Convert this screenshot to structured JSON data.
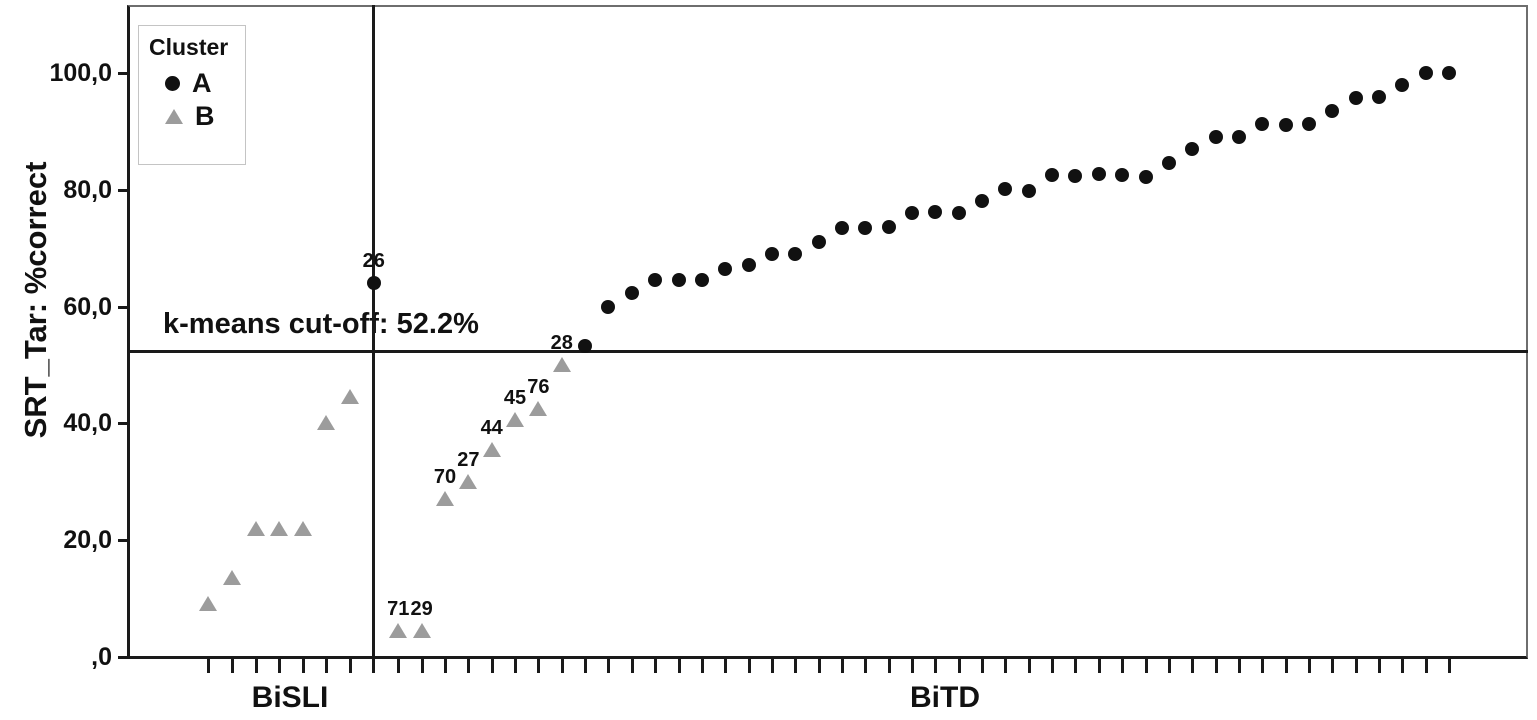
{
  "figure": {
    "y_axis": {
      "title": "SRT_Tar: %correct",
      "ticks": [
        {
          "label": "100,0",
          "value": 100
        },
        {
          "label": "80,0",
          "value": 80
        },
        {
          "label": "60,0",
          "value": 60
        },
        {
          "label": "40,0",
          "value": 40
        },
        {
          "label": "20,0",
          "value": 20
        },
        {
          "label": ",0",
          "value": 0
        }
      ]
    },
    "x_axis": {
      "groups": [
        {
          "label": "BiSLI"
        },
        {
          "label": "BiTD"
        }
      ]
    },
    "legend": {
      "title": "Cluster",
      "entries": [
        {
          "label": "A",
          "marker": "circle"
        },
        {
          "label": "B",
          "marker": "triangle"
        }
      ]
    },
    "cutoff": {
      "text": "k-means cut-off: 52.2%",
      "value": 52.2
    },
    "colors": {
      "cluster_a": "#111111",
      "cluster_b": "#9c9c9c"
    }
  },
  "chart_data": {
    "type": "scatter",
    "title": "",
    "xlabel": "",
    "ylabel": "SRT_Tar: %correct",
    "ylim": [
      0,
      111
    ],
    "grid": false,
    "legend_position": "top-left",
    "cutoff_value": 52.2,
    "groups": [
      "BiSLI",
      "BiTD"
    ],
    "series": [
      {
        "name": "BiSLI",
        "points": [
          {
            "y": 9,
            "cluster": "B"
          },
          {
            "y": 13.5,
            "cluster": "B"
          },
          {
            "y": 22,
            "cluster": "B"
          },
          {
            "y": 22,
            "cluster": "B"
          },
          {
            "y": 22,
            "cluster": "B"
          },
          {
            "y": 40,
            "cluster": "B"
          },
          {
            "y": 44.5,
            "cluster": "B"
          },
          {
            "y": 64,
            "cluster": "A",
            "label": "26"
          }
        ]
      },
      {
        "name": "BiTD",
        "points": [
          {
            "y": 4.5,
            "cluster": "B",
            "label": "71"
          },
          {
            "y": 4.5,
            "cluster": "B",
            "label": "29"
          },
          {
            "y": 27,
            "cluster": "B",
            "label": "70"
          },
          {
            "y": 30,
            "cluster": "B",
            "label": "27"
          },
          {
            "y": 35.5,
            "cluster": "B",
            "label": "44"
          },
          {
            "y": 40.5,
            "cluster": "B",
            "label": "45"
          },
          {
            "y": 42.5,
            "cluster": "B",
            "label": "76"
          },
          {
            "y": 50,
            "cluster": "B",
            "label": "28"
          },
          {
            "y": 53.3,
            "cluster": "A"
          },
          {
            "y": 60,
            "cluster": "A"
          },
          {
            "y": 62.3,
            "cluster": "A"
          },
          {
            "y": 64.5,
            "cluster": "A"
          },
          {
            "y": 64.5,
            "cluster": "A"
          },
          {
            "y": 64.5,
            "cluster": "A"
          },
          {
            "y": 66.5,
            "cluster": "A"
          },
          {
            "y": 67.2,
            "cluster": "A"
          },
          {
            "y": 69,
            "cluster": "A"
          },
          {
            "y": 69,
            "cluster": "A"
          },
          {
            "y": 71,
            "cluster": "A"
          },
          {
            "y": 73.4,
            "cluster": "A"
          },
          {
            "y": 73.5,
            "cluster": "A"
          },
          {
            "y": 73.6,
            "cluster": "A"
          },
          {
            "y": 76,
            "cluster": "A"
          },
          {
            "y": 76.2,
            "cluster": "A"
          },
          {
            "y": 76,
            "cluster": "A"
          },
          {
            "y": 78,
            "cluster": "A"
          },
          {
            "y": 80.1,
            "cluster": "A"
          },
          {
            "y": 79.8,
            "cluster": "A"
          },
          {
            "y": 82.5,
            "cluster": "A"
          },
          {
            "y": 82.4,
            "cluster": "A"
          },
          {
            "y": 82.7,
            "cluster": "A"
          },
          {
            "y": 82.5,
            "cluster": "A"
          },
          {
            "y": 82.2,
            "cluster": "A"
          },
          {
            "y": 84.6,
            "cluster": "A"
          },
          {
            "y": 87,
            "cluster": "A"
          },
          {
            "y": 89,
            "cluster": "A"
          },
          {
            "y": 89,
            "cluster": "A"
          },
          {
            "y": 91.3,
            "cluster": "A"
          },
          {
            "y": 91.1,
            "cluster": "A"
          },
          {
            "y": 91.3,
            "cluster": "A"
          },
          {
            "y": 93.5,
            "cluster": "A"
          },
          {
            "y": 95.7,
            "cluster": "A"
          },
          {
            "y": 95.9,
            "cluster": "A"
          },
          {
            "y": 98,
            "cluster": "A"
          },
          {
            "y": 100,
            "cluster": "A"
          },
          {
            "y": 100,
            "cluster": "A"
          }
        ]
      }
    ]
  }
}
